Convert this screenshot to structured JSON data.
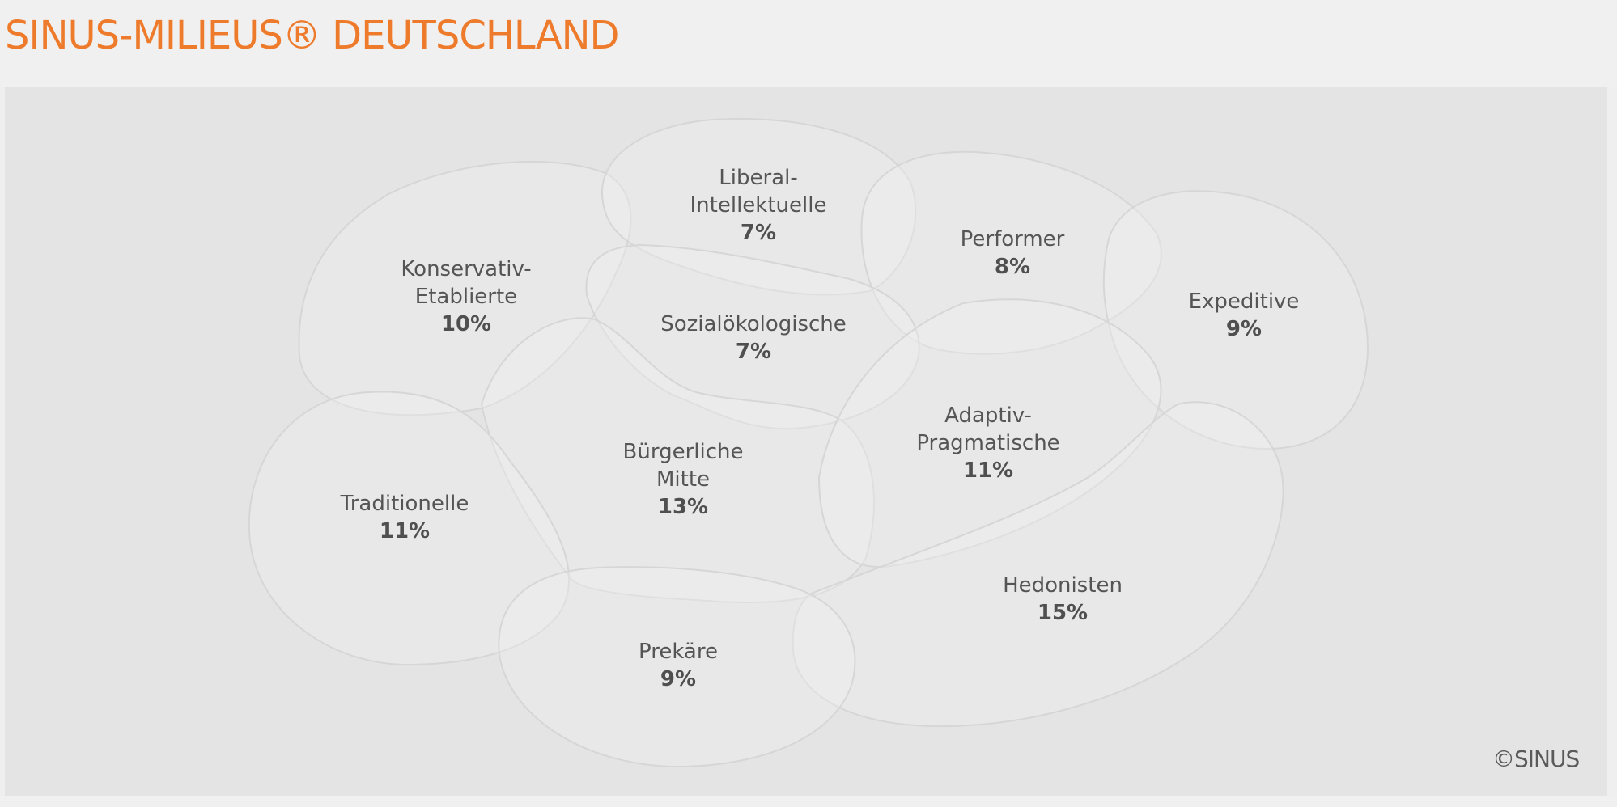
{
  "header": {
    "title": "SINUS-MILIEUS® DEUTSCHLAND"
  },
  "colors": {
    "accent": "#ee7b2b",
    "panel": "#e5e4e4",
    "shape_stroke": "#d7d6d6"
  },
  "diagram": {
    "milieus": [
      {
        "id": "konservativ-etablierte",
        "name": [
          "Konservativ-",
          "Etablierte"
        ],
        "share": "10%"
      },
      {
        "id": "liberal-intellektuelle",
        "name": [
          "Liberal-",
          "Intellektuelle"
        ],
        "share": "7%"
      },
      {
        "id": "performer",
        "name": [
          "Performer"
        ],
        "share": "8%"
      },
      {
        "id": "expeditive",
        "name": [
          "Expeditive"
        ],
        "share": "9%"
      },
      {
        "id": "sozialoekologische",
        "name": [
          "Sozialökologische"
        ],
        "share": "7%"
      },
      {
        "id": "buergerliche-mitte",
        "name": [
          "Bürgerliche",
          "Mitte"
        ],
        "share": "13%"
      },
      {
        "id": "adaptiv-pragmatische",
        "name": [
          "Adaptiv-",
          "Pragmatische"
        ],
        "share": "11%"
      },
      {
        "id": "traditionelle",
        "name": [
          "Traditionelle"
        ],
        "share": "11%"
      },
      {
        "id": "hedonisten",
        "name": [
          "Hedonisten"
        ],
        "share": "15%"
      },
      {
        "id": "prekaere",
        "name": [
          "Prekäre"
        ],
        "share": "9%"
      }
    ],
    "copyright": "©SINUS"
  }
}
